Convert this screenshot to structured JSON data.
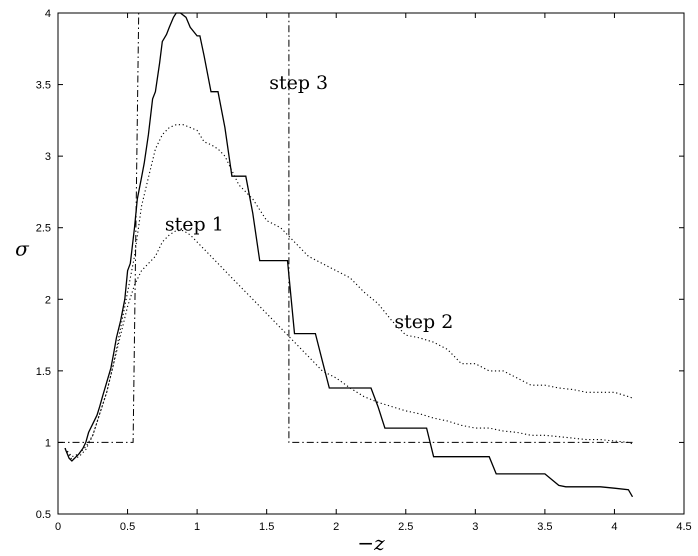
{
  "chart_data": {
    "type": "line",
    "title": "",
    "xlabel": "−z",
    "ylabel": "σ",
    "xlim": [
      0,
      4.5
    ],
    "ylim": [
      0.5,
      4
    ],
    "xticks": [
      "0",
      "0.5",
      "1",
      "1.5",
      "2",
      "2.5",
      "3",
      "3.5",
      "4",
      "4.5"
    ],
    "yticks": [
      "0.5",
      "1",
      "1.5",
      "2",
      "2.5",
      "3",
      "3.5",
      "4"
    ],
    "grid": false,
    "legend": "none",
    "annotations": [
      {
        "text": "step 3",
        "x": 1.73,
        "y": 3.47
      },
      {
        "text": "step 1",
        "x": 0.98,
        "y": 2.48
      },
      {
        "text": "step 2",
        "x": 2.63,
        "y": 1.8
      }
    ],
    "series": [
      {
        "style": "solid",
        "x": [
          0.05,
          0.08,
          0.1,
          0.15,
          0.18,
          0.2,
          0.22,
          0.25,
          0.28,
          0.3,
          0.32,
          0.35,
          0.38,
          0.4,
          0.42,
          0.45,
          0.48,
          0.5,
          0.52,
          0.55,
          0.57,
          0.6,
          0.62,
          0.65,
          0.68,
          0.7,
          0.73,
          0.75,
          0.78,
          0.8,
          0.83,
          0.85,
          0.88,
          0.92,
          0.95,
          1.0,
          1.02,
          1.05,
          1.1,
          1.15,
          1.2,
          1.25,
          1.3,
          1.35,
          1.4,
          1.45,
          1.5,
          1.55,
          1.6,
          1.65,
          1.7,
          1.75,
          1.8,
          1.85,
          1.9,
          1.95,
          2.0,
          2.05,
          2.1,
          2.15,
          2.2,
          2.25,
          2.3,
          2.35,
          2.4,
          2.45,
          2.5,
          2.55,
          2.6,
          2.65,
          2.7,
          2.8,
          2.9,
          3.0,
          3.1,
          3.15,
          3.2,
          3.3,
          3.4,
          3.5,
          3.6,
          3.65,
          3.7,
          3.8,
          3.9,
          4.0,
          4.1,
          4.13
        ],
        "y": [
          0.96,
          0.89,
          0.87,
          0.92,
          0.96,
          1.0,
          1.07,
          1.13,
          1.19,
          1.25,
          1.32,
          1.42,
          1.52,
          1.62,
          1.73,
          1.85,
          2.0,
          2.2,
          2.25,
          2.5,
          2.7,
          2.85,
          2.95,
          3.15,
          3.4,
          3.45,
          3.65,
          3.8,
          3.85,
          3.9,
          3.97,
          4.0,
          4.0,
          3.97,
          3.9,
          3.84,
          3.84,
          3.7,
          3.45,
          3.45,
          3.2,
          2.86,
          2.86,
          2.86,
          2.6,
          2.27,
          2.27,
          2.27,
          2.27,
          2.27,
          1.76,
          1.76,
          1.76,
          1.76,
          1.57,
          1.38,
          1.38,
          1.38,
          1.38,
          1.38,
          1.38,
          1.38,
          1.25,
          1.1,
          1.1,
          1.1,
          1.1,
          1.1,
          1.1,
          1.1,
          0.9,
          0.9,
          0.9,
          0.9,
          0.9,
          0.78,
          0.78,
          0.78,
          0.78,
          0.78,
          0.7,
          0.69,
          0.69,
          0.69,
          0.69,
          0.68,
          0.67,
          0.62
        ]
      },
      {
        "style": "dotted",
        "x": [
          0.05,
          0.1,
          0.15,
          0.2,
          0.25,
          0.3,
          0.35,
          0.4,
          0.45,
          0.5,
          0.55,
          0.6,
          0.65,
          0.7,
          0.75,
          0.8,
          0.85,
          0.9,
          0.95,
          1.0,
          1.05,
          1.1,
          1.15,
          1.2,
          1.3,
          1.4,
          1.5,
          1.6,
          1.7,
          1.8,
          1.9,
          2.0,
          2.1,
          2.2,
          2.3,
          2.4,
          2.5,
          2.6,
          2.7,
          2.8,
          2.9,
          3.0,
          3.1,
          3.2,
          3.3,
          3.4,
          3.5,
          3.6,
          3.7,
          3.8,
          3.9,
          4.0,
          4.1,
          4.13
        ],
        "y": [
          0.96,
          0.88,
          0.9,
          0.95,
          1.05,
          1.2,
          1.35,
          1.55,
          1.8,
          2.05,
          2.3,
          2.65,
          2.85,
          3.05,
          3.15,
          3.2,
          3.22,
          3.22,
          3.2,
          3.18,
          3.1,
          3.08,
          3.05,
          3.0,
          2.8,
          2.7,
          2.55,
          2.5,
          2.4,
          2.3,
          2.25,
          2.2,
          2.15,
          2.05,
          1.97,
          1.85,
          1.75,
          1.73,
          1.7,
          1.65,
          1.55,
          1.55,
          1.5,
          1.5,
          1.45,
          1.4,
          1.4,
          1.38,
          1.37,
          1.35,
          1.35,
          1.35,
          1.32,
          1.31
        ]
      },
      {
        "style": "dotted",
        "x": [
          0.05,
          0.1,
          0.15,
          0.2,
          0.25,
          0.3,
          0.35,
          0.4,
          0.45,
          0.5,
          0.55,
          0.6,
          0.65,
          0.7,
          0.75,
          0.8,
          0.85,
          0.9,
          0.95,
          1.0,
          1.05,
          1.1,
          1.15,
          1.2,
          1.3,
          1.4,
          1.5,
          1.6,
          1.7,
          1.8,
          1.9,
          2.0,
          2.1,
          2.2,
          2.3,
          2.4,
          2.5,
          2.6,
          2.7,
          2.8,
          2.9,
          3.0,
          3.1,
          3.2,
          3.3,
          3.4,
          3.5,
          3.6,
          3.7,
          3.8,
          3.9,
          4.0,
          4.1,
          4.13
        ],
        "y": [
          0.96,
          0.9,
          0.92,
          0.97,
          1.05,
          1.2,
          1.35,
          1.55,
          1.75,
          1.95,
          2.1,
          2.2,
          2.25,
          2.3,
          2.4,
          2.45,
          2.48,
          2.48,
          2.45,
          2.4,
          2.35,
          2.3,
          2.25,
          2.2,
          2.1,
          2.0,
          1.9,
          1.8,
          1.7,
          1.6,
          1.5,
          1.45,
          1.38,
          1.32,
          1.28,
          1.25,
          1.22,
          1.2,
          1.17,
          1.15,
          1.12,
          1.1,
          1.1,
          1.08,
          1.07,
          1.05,
          1.05,
          1.04,
          1.03,
          1.02,
          1.02,
          1.01,
          1.0,
          0.99
        ]
      },
      {
        "style": "dashdot",
        "x": [
          0.0,
          0.54,
          0.54,
          0.58,
          0.58,
          1.66,
          1.66,
          1.7,
          1.7,
          4.13
        ],
        "y": [
          1.0,
          1.0,
          1.0,
          4.0,
          4.0,
          4.0,
          1.0,
          1.0,
          1.0,
          1.0
        ]
      }
    ]
  }
}
